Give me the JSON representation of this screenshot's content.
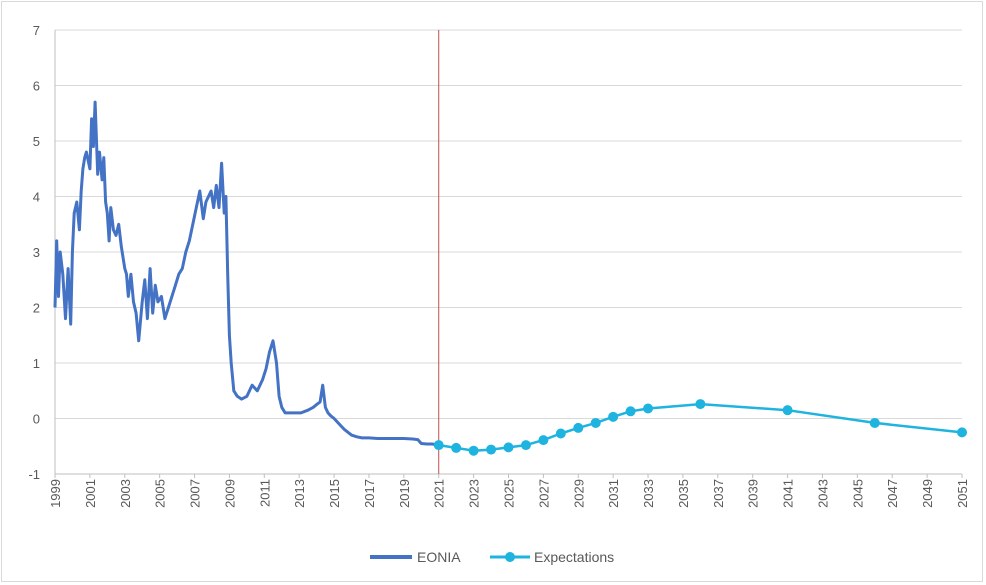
{
  "chart_data": {
    "type": "line",
    "title": "",
    "xlabel": "",
    "ylabel": "",
    "xlim": [
      1999,
      2051
    ],
    "ylim": [
      -1,
      7
    ],
    "y_ticks": [
      -1,
      0,
      1,
      2,
      3,
      4,
      5,
      6,
      7
    ],
    "x_ticks": [
      1999,
      2001,
      2003,
      2005,
      2007,
      2009,
      2011,
      2013,
      2015,
      2017,
      2019,
      2021,
      2023,
      2025,
      2027,
      2029,
      2031,
      2033,
      2035,
      2037,
      2039,
      2041,
      2043,
      2045,
      2047,
      2049,
      2051
    ],
    "grid": "horizontal",
    "vline_x": 2021.0,
    "legend_position": "bottom",
    "colors": {
      "eonia": "#4472C4",
      "expectations": "#1FB4E0",
      "vline": "#C0504D",
      "grid": "#d9d9d9",
      "axis": "#bfbfbf"
    },
    "series": [
      {
        "name": "EONIA",
        "x": [
          1999.0,
          1999.1,
          1999.2,
          1999.3,
          1999.45,
          1999.6,
          1999.75,
          1999.9,
          2000.0,
          2000.1,
          2000.25,
          2000.4,
          2000.5,
          2000.6,
          2000.7,
          2000.8,
          2001.0,
          2001.1,
          2001.2,
          2001.3,
          2001.45,
          2001.55,
          2001.7,
          2001.8,
          2001.9,
          2002.0,
          2002.1,
          2002.2,
          2002.35,
          2002.5,
          2002.65,
          2002.8,
          2003.0,
          2003.1,
          2003.2,
          2003.35,
          2003.5,
          2003.65,
          2003.8,
          2004.0,
          2004.15,
          2004.3,
          2004.45,
          2004.6,
          2004.75,
          2004.9,
          2005.1,
          2005.3,
          2005.5,
          2005.7,
          2005.9,
          2006.1,
          2006.3,
          2006.5,
          2006.7,
          2006.9,
          2007.1,
          2007.3,
          2007.5,
          2007.65,
          2007.8,
          2007.95,
          2008.1,
          2008.25,
          2008.4,
          2008.55,
          2008.7,
          2008.8,
          2008.9,
          2009.0,
          2009.1,
          2009.25,
          2009.45,
          2009.7,
          2010.0,
          2010.3,
          2010.6,
          2010.9,
          2011.1,
          2011.3,
          2011.5,
          2011.7,
          2011.85,
          2012.0,
          2012.2,
          2012.5,
          2012.8,
          2013.1,
          2013.5,
          2013.8,
          2014.0,
          2014.2,
          2014.35,
          2014.5,
          2014.65,
          2014.8,
          2015.0,
          2015.3,
          2015.6,
          2016.0,
          2016.3,
          2016.6,
          2017.0,
          2017.5,
          2018.0,
          2018.5,
          2019.0,
          2019.5,
          2019.8,
          2020.0,
          2020.3,
          2020.6,
          2020.9
        ],
        "values": [
          2.0,
          3.2,
          2.2,
          3.0,
          2.6,
          1.8,
          2.7,
          1.7,
          3.0,
          3.7,
          3.9,
          3.4,
          4.1,
          4.5,
          4.7,
          4.8,
          4.5,
          5.4,
          4.9,
          5.7,
          4.4,
          4.8,
          4.3,
          4.7,
          3.9,
          3.7,
          3.2,
          3.8,
          3.4,
          3.3,
          3.5,
          3.1,
          2.7,
          2.6,
          2.2,
          2.6,
          2.1,
          1.9,
          1.4,
          2.1,
          2.5,
          1.8,
          2.7,
          1.9,
          2.4,
          2.1,
          2.2,
          1.8,
          2.0,
          2.2,
          2.4,
          2.6,
          2.7,
          3.0,
          3.2,
          3.5,
          3.8,
          4.1,
          3.6,
          3.9,
          4.0,
          4.1,
          3.8,
          4.2,
          3.8,
          4.6,
          3.7,
          4.0,
          2.6,
          1.5,
          1.0,
          0.5,
          0.4,
          0.35,
          0.4,
          0.6,
          0.5,
          0.7,
          0.9,
          1.2,
          1.4,
          1.0,
          0.4,
          0.2,
          0.1,
          0.1,
          0.1,
          0.1,
          0.15,
          0.2,
          0.25,
          0.3,
          0.6,
          0.2,
          0.1,
          0.05,
          0.0,
          -0.1,
          -0.2,
          -0.3,
          -0.33,
          -0.35,
          -0.35,
          -0.36,
          -0.36,
          -0.36,
          -0.36,
          -0.37,
          -0.38,
          -0.45,
          -0.46,
          -0.46,
          -0.47
        ]
      },
      {
        "name": "Expectations",
        "x": [
          2021.0,
          2022.0,
          2023.0,
          2024.0,
          2025.0,
          2026.0,
          2027.0,
          2028.0,
          2029.0,
          2030.0,
          2031.0,
          2032.0,
          2033.0,
          2036.0,
          2041.0,
          2046.0,
          2051.0
        ],
        "values": [
          -0.48,
          -0.53,
          -0.58,
          -0.56,
          -0.52,
          -0.48,
          -0.39,
          -0.27,
          -0.17,
          -0.08,
          0.03,
          0.13,
          0.18,
          0.26,
          0.15,
          -0.08,
          -0.25
        ]
      }
    ]
  }
}
